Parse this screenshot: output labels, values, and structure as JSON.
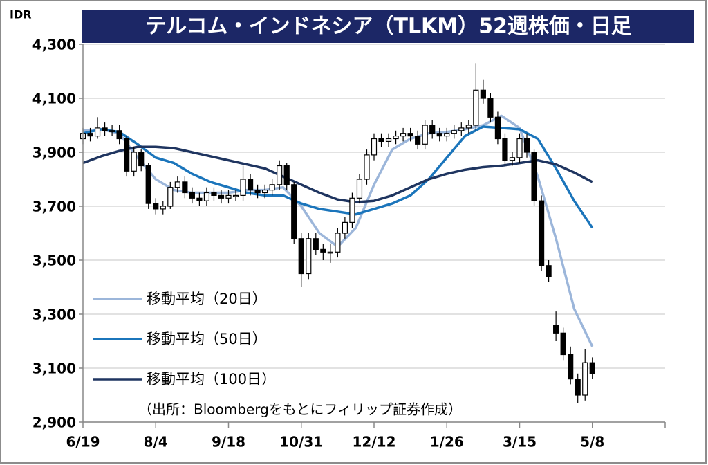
{
  "chart_data": {
    "type": "candlestick",
    "title": "テルコム・インドネシア（TLKM）52週株価・日足",
    "y_label": "IDR",
    "source": "（出所：Bloombergをもとにフィリップ証券作成）",
    "xlim": [
      0,
      320
    ],
    "xticks": [
      {
        "value": 0,
        "label": "6/19"
      },
      {
        "value": 40,
        "label": "8/4"
      },
      {
        "value": 80,
        "label": "9/18"
      },
      {
        "value": 120,
        "label": "10/31"
      },
      {
        "value": 160,
        "label": "12/12"
      },
      {
        "value": 200,
        "label": "1/26"
      },
      {
        "value": 240,
        "label": "3/15"
      },
      {
        "value": 280,
        "label": "5/8"
      }
    ],
    "ylim": [
      2900,
      4300
    ],
    "yticks": [
      {
        "value": 2900,
        "label": "2,900"
      },
      {
        "value": 3100,
        "label": "3,100"
      },
      {
        "value": 3300,
        "label": "3,300"
      },
      {
        "value": 3500,
        "label": "3,500"
      },
      {
        "value": 3700,
        "label": "3,700"
      },
      {
        "value": 3900,
        "label": "3,900"
      },
      {
        "value": 4100,
        "label": "4,100"
      },
      {
        "value": 4300,
        "label": "4,300"
      }
    ],
    "grid": true,
    "candles": {
      "x": [
        0,
        4,
        8,
        12,
        16,
        20,
        24,
        28,
        32,
        36,
        40,
        44,
        48,
        52,
        56,
        60,
        64,
        68,
        72,
        76,
        80,
        84,
        88,
        92,
        96,
        100,
        104,
        108,
        112,
        116,
        120,
        124,
        128,
        132,
        136,
        140,
        144,
        148,
        152,
        156,
        160,
        164,
        168,
        172,
        176,
        180,
        184,
        188,
        192,
        196,
        200,
        204,
        208,
        212,
        216,
        220,
        224,
        228,
        232,
        236,
        240,
        244,
        248,
        252,
        256,
        260,
        264,
        268,
        272,
        276,
        280
      ],
      "open": [
        3950,
        3970,
        3960,
        3990,
        3980,
        3980,
        3950,
        3830,
        3900,
        3850,
        3710,
        3690,
        3700,
        3770,
        3790,
        3750,
        3730,
        3720,
        3750,
        3740,
        3730,
        3740,
        3740,
        3800,
        3760,
        3750,
        3760,
        3780,
        3850,
        3780,
        3580,
        3450,
        3580,
        3540,
        3530,
        3530,
        3600,
        3640,
        3730,
        3800,
        3890,
        3950,
        3940,
        3950,
        3960,
        3970,
        3960,
        3930,
        4000,
        3970,
        3960,
        3970,
        3980,
        3990,
        4000,
        4130,
        4100,
        4030,
        3950,
        3870,
        3880,
        3950,
        3900,
        3720,
        3480,
        3260,
        3230,
        3150,
        3060,
        3000,
        3120
      ],
      "high": [
        3990,
        3990,
        4030,
        4010,
        4000,
        4000,
        3960,
        3920,
        3910,
        3860,
        3730,
        3720,
        3790,
        3810,
        3810,
        3770,
        3750,
        3770,
        3770,
        3760,
        3760,
        3760,
        3850,
        3820,
        3780,
        3780,
        3800,
        3870,
        3860,
        3790,
        3600,
        3600,
        3600,
        3560,
        3560,
        3620,
        3660,
        3750,
        3820,
        3910,
        3970,
        3970,
        3970,
        3980,
        3990,
        3990,
        3980,
        4020,
        4020,
        3990,
        3990,
        4000,
        4010,
        4020,
        4230,
        4170,
        4120,
        4050,
        3970,
        3900,
        3970,
        3970,
        3910,
        3740,
        3500,
        3310,
        3250,
        3180,
        3080,
        3170,
        3140
      ],
      "low": [
        3930,
        3940,
        3950,
        3960,
        3960,
        3930,
        3810,
        3810,
        3830,
        3690,
        3670,
        3670,
        3690,
        3750,
        3730,
        3710,
        3700,
        3700,
        3720,
        3710,
        3710,
        3720,
        3720,
        3740,
        3730,
        3730,
        3740,
        3760,
        3760,
        3560,
        3400,
        3430,
        3520,
        3500,
        3490,
        3510,
        3580,
        3620,
        3710,
        3780,
        3870,
        3920,
        3920,
        3930,
        3940,
        3940,
        3910,
        3910,
        3950,
        3940,
        3940,
        3950,
        3960,
        3970,
        3980,
        4080,
        4010,
        3930,
        3850,
        3850,
        3860,
        3880,
        3700,
        3460,
        3420,
        3200,
        3130,
        3040,
        2970,
        2980,
        3060
      ],
      "close": [
        3970,
        3960,
        3990,
        3980,
        3980,
        3950,
        3830,
        3900,
        3850,
        3710,
        3690,
        3700,
        3770,
        3790,
        3750,
        3730,
        3720,
        3750,
        3740,
        3730,
        3740,
        3740,
        3800,
        3760,
        3750,
        3760,
        3780,
        3850,
        3780,
        3580,
        3450,
        3580,
        3540,
        3530,
        3530,
        3600,
        3640,
        3730,
        3800,
        3890,
        3950,
        3940,
        3950,
        3960,
        3970,
        3960,
        3930,
        4000,
        3970,
        3960,
        3970,
        3980,
        3990,
        4000,
        4130,
        4100,
        4030,
        3950,
        3870,
        3880,
        3950,
        3900,
        3720,
        3480,
        3440,
        3230,
        3150,
        3060,
        3000,
        3120,
        3080
      ]
    },
    "series": [
      {
        "name": "移動平均（20日）",
        "color": "#9cb6da",
        "x": [
          0,
          10,
          20,
          30,
          40,
          50,
          60,
          70,
          80,
          90,
          100,
          110,
          120,
          130,
          140,
          150,
          160,
          170,
          180,
          190,
          200,
          210,
          220,
          230,
          240,
          250,
          260,
          270,
          280
        ],
        "values": [
          3980,
          3985,
          3970,
          3880,
          3800,
          3760,
          3750,
          3750,
          3750,
          3760,
          3760,
          3770,
          3700,
          3600,
          3550,
          3620,
          3780,
          3910,
          3950,
          3970,
          3975,
          3985,
          4000,
          4035,
          3990,
          3810,
          3580,
          3320,
          3180
        ]
      },
      {
        "name": "移動平均（50日）",
        "color": "#1b75bb",
        "x": [
          0,
          10,
          20,
          30,
          40,
          50,
          60,
          70,
          80,
          90,
          100,
          110,
          120,
          130,
          140,
          150,
          160,
          170,
          180,
          190,
          200,
          210,
          220,
          230,
          240,
          250,
          260,
          270,
          280
        ],
        "values": [
          3970,
          3985,
          3975,
          3930,
          3880,
          3860,
          3820,
          3790,
          3770,
          3750,
          3740,
          3740,
          3710,
          3690,
          3680,
          3670,
          3690,
          3710,
          3740,
          3800,
          3880,
          3960,
          3995,
          3990,
          3985,
          3950,
          3840,
          3720,
          3620
        ]
      },
      {
        "name": "移動平均（100日）",
        "color": "#1f3560",
        "x": [
          0,
          10,
          20,
          30,
          40,
          50,
          60,
          70,
          80,
          90,
          100,
          110,
          120,
          130,
          140,
          150,
          160,
          170,
          180,
          190,
          200,
          210,
          220,
          230,
          240,
          250,
          260,
          270,
          280
        ],
        "values": [
          3860,
          3885,
          3905,
          3920,
          3920,
          3915,
          3900,
          3885,
          3870,
          3855,
          3840,
          3810,
          3780,
          3750,
          3725,
          3715,
          3720,
          3740,
          3770,
          3800,
          3820,
          3835,
          3845,
          3850,
          3860,
          3870,
          3855,
          3825,
          3790
        ]
      }
    ]
  }
}
